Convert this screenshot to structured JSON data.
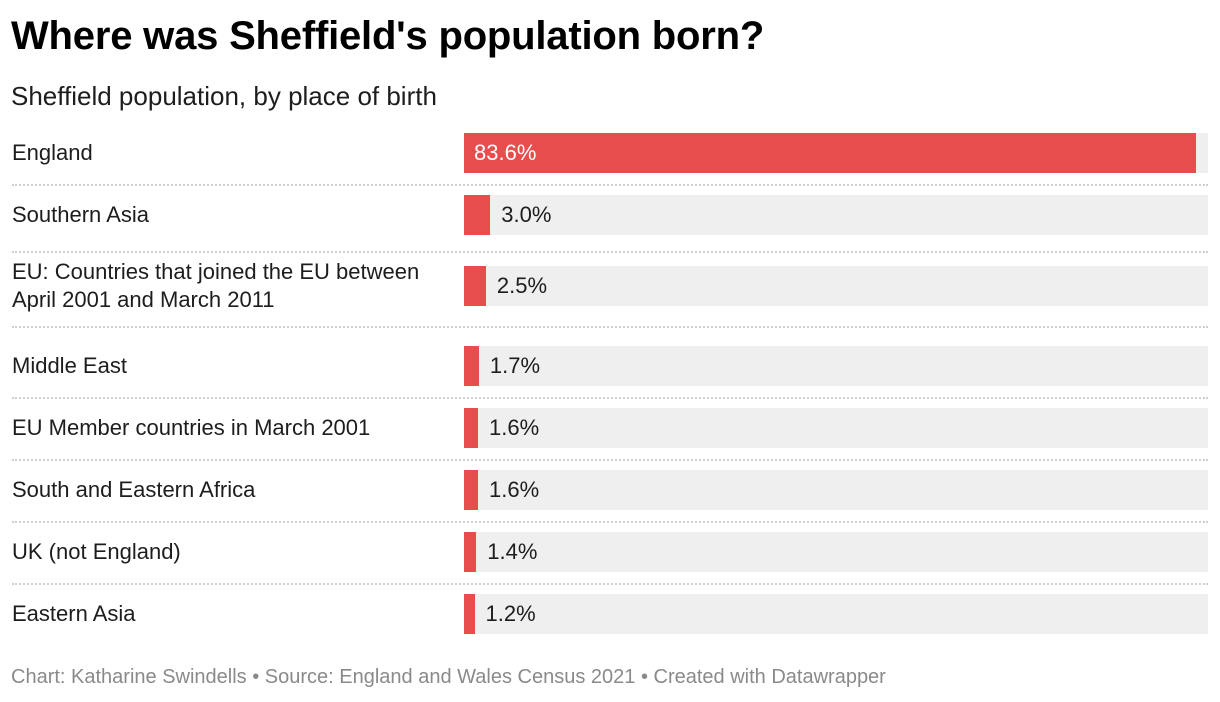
{
  "chart_data": {
    "type": "bar",
    "orientation": "horizontal",
    "title": "Where was Sheffield's population born?",
    "subtitle": "Sheffield population, by place of birth",
    "categories": [
      "England",
      "Southern Asia",
      "EU: Countries that joined the EU between April 2001 and March 2011",
      "Middle East",
      "EU Member countries in March 2001",
      "South and Eastern Africa",
      "UK (not England)",
      "Eastern Asia"
    ],
    "label_lines": [
      [
        "England"
      ],
      [
        "Southern Asia"
      ],
      [
        "EU: Countries that joined the EU between",
        "April 2001 and March 2011"
      ],
      [
        "Middle East"
      ],
      [
        "EU Member countries in March 2001"
      ],
      [
        "South and Eastern Africa"
      ],
      [
        "UK (not England)"
      ],
      [
        "Eastern Asia"
      ]
    ],
    "values": [
      83.6,
      3.0,
      2.5,
      1.7,
      1.6,
      1.6,
      1.4,
      1.2
    ],
    "value_labels": [
      "83.6%",
      "3.0%",
      "2.5%",
      "1.7%",
      "1.6%",
      "1.6%",
      "1.4%",
      "1.2%"
    ],
    "unit": "%",
    "xlim": [
      0,
      85
    ],
    "colors": {
      "bar": "#e84d4d",
      "track": "#efefef",
      "separator": "#cfcfcf"
    }
  },
  "footer": {
    "text": "Chart: Katharine Swindells • Source: England and Wales Census 2021 • Created with Datawrapper"
  }
}
